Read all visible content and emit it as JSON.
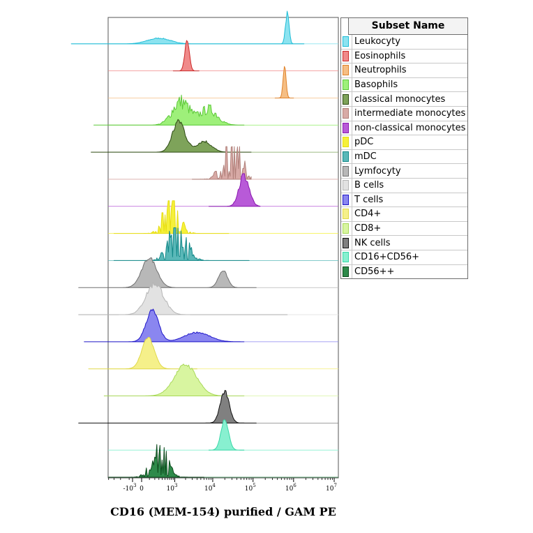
{
  "chart_data": {
    "type": "area",
    "title": "",
    "xlabel": "CD16 (MEM-154) purified / GAM PE",
    "ylabel": "",
    "x_scale": "biexponential (log with linear region near zero)",
    "x_ticks": [
      {
        "label": "-10",
        "exp": "3",
        "value": -1000
      },
      {
        "label": "0",
        "exp": "",
        "value": 0
      },
      {
        "label": "10",
        "exp": "3",
        "value": 1000
      },
      {
        "label": "10",
        "exp": "4",
        "value": 10000
      },
      {
        "label": "10",
        "exp": "5",
        "value": 100000
      },
      {
        "label": "10",
        "exp": "6",
        "value": 1000000
      },
      {
        "label": "10",
        "exp": "7",
        "value": 10000000
      }
    ],
    "legend_title": "Subset Name",
    "legend_position": "right",
    "series": [
      {
        "name": "Leukocyty",
        "color": "#8ce3f0",
        "stroke": "#1fbcd6",
        "peaks": [
          {
            "center": 300,
            "width": 0.45,
            "height": 0.18
          },
          {
            "center": 700000,
            "width": 0.07,
            "height": 1.0
          }
        ],
        "range": [
          -2000,
          1800000
        ],
        "noise": 0.1
      },
      {
        "name": "Eosinophils",
        "color": "#f08a8a",
        "stroke": "#cc2a2a",
        "peaks": [
          {
            "center": 2200,
            "width": 0.09,
            "height": 1.0
          }
        ],
        "range": [
          900,
          4500
        ],
        "noise": 0.05
      },
      {
        "name": "Neutrophils",
        "color": "#f5be84",
        "stroke": "#e0822a",
        "peaks": [
          {
            "center": 600000,
            "width": 0.06,
            "height": 1.0
          }
        ],
        "range": [
          350000,
          1000000
        ],
        "noise": 0.04
      },
      {
        "name": "Basophils",
        "color": "#9ef07a",
        "stroke": "#5cc838",
        "peaks": [
          {
            "center": 1500,
            "width": 0.35,
            "height": 0.75
          },
          {
            "center": 8000,
            "width": 0.35,
            "height": 0.5
          }
        ],
        "range": [
          -800,
          60000
        ],
        "noise": 0.35
      },
      {
        "name": "classical monocytes",
        "color": "#7ea35a",
        "stroke": "#2c4a12",
        "peaks": [
          {
            "center": 1300,
            "width": 0.25,
            "height": 1.0
          },
          {
            "center": 6000,
            "width": 0.3,
            "height": 0.35
          }
        ],
        "range": [
          -900,
          90000
        ],
        "noise": 0.15
      },
      {
        "name": "intermediate monocytes",
        "color": "#d8aaa6",
        "stroke": "#b0807a",
        "peaks": [
          {
            "center": 30000,
            "width": 0.35,
            "height": 1.0
          }
        ],
        "range": [
          3000,
          90000
        ],
        "noise": 0.8
      },
      {
        "name": "non-classical monocytes",
        "color": "#b85ad8",
        "stroke": "#8a18b0",
        "peaks": [
          {
            "center": 60000,
            "width": 0.2,
            "height": 1.0
          }
        ],
        "range": [
          8000,
          150000
        ],
        "noise": 0.2
      },
      {
        "name": "pDC",
        "color": "#f5f03a",
        "stroke": "#e6dc10",
        "peaks": [
          {
            "center": 800,
            "width": 0.3,
            "height": 1.0
          }
        ],
        "range": [
          -300,
          25000
        ],
        "noise": 0.6
      },
      {
        "name": "mDC",
        "color": "#5ab8b8",
        "stroke": "#128888",
        "peaks": [
          {
            "center": 1200,
            "width": 0.35,
            "height": 1.0
          }
        ],
        "range": [
          -300,
          80000
        ],
        "noise": 0.55
      },
      {
        "name": "Lymfocyty",
        "color": "#b8b8b8",
        "stroke": "#707070",
        "peaks": [
          {
            "center": 100,
            "width": 0.3,
            "height": 0.95
          },
          {
            "center": 18000,
            "width": 0.18,
            "height": 0.55
          }
        ],
        "range": [
          -1500,
          120000
        ],
        "noise": 0.06
      },
      {
        "name": "B cells",
        "color": "#e2e2e2",
        "stroke": "#b5b5b5",
        "peaks": [
          {
            "center": 200,
            "width": 0.35,
            "height": 1.0
          }
        ],
        "range": [
          -1500,
          700000
        ],
        "noise": 0.12
      },
      {
        "name": "T cells",
        "color": "#8a86f0",
        "stroke": "#1e16c8",
        "peaks": [
          {
            "center": 150,
            "width": 0.25,
            "height": 1.0
          },
          {
            "center": 4000,
            "width": 0.5,
            "height": 0.3
          }
        ],
        "range": [
          -1200,
          60000
        ],
        "noise": 0.08
      },
      {
        "name": "CD4+",
        "color": "#f5f08a",
        "stroke": "#e0d84a",
        "peaks": [
          {
            "center": 80,
            "width": 0.25,
            "height": 1.0
          }
        ],
        "range": [
          -1000,
          4000
        ],
        "noise": 0.04
      },
      {
        "name": "CD8+",
        "color": "#d8f5a0",
        "stroke": "#a8d858",
        "peaks": [
          {
            "center": 2000,
            "width": 0.45,
            "height": 1.0
          }
        ],
        "range": [
          -500,
          60000
        ],
        "noise": 0.06
      },
      {
        "name": "NK cells",
        "color": "#808080",
        "stroke": "#101010",
        "peaks": [
          {
            "center": 20000,
            "width": 0.18,
            "height": 1.0
          }
        ],
        "range": [
          -1500,
          120000
        ],
        "noise": 0.08
      },
      {
        "name": "CD16+CD56+",
        "color": "#88f0d0",
        "stroke": "#3ad8a8",
        "peaks": [
          {
            "center": 20000,
            "width": 0.15,
            "height": 1.0
          }
        ],
        "range": [
          8000,
          60000
        ],
        "noise": 0.05
      },
      {
        "name": "CD56++",
        "color": "#2e8a4a",
        "stroke": "#0c4a1c",
        "peaks": [
          {
            "center": 300,
            "width": 0.3,
            "height": 1.0
          }
        ],
        "range": [
          -400,
          6000
        ],
        "noise": 0.6
      }
    ]
  }
}
